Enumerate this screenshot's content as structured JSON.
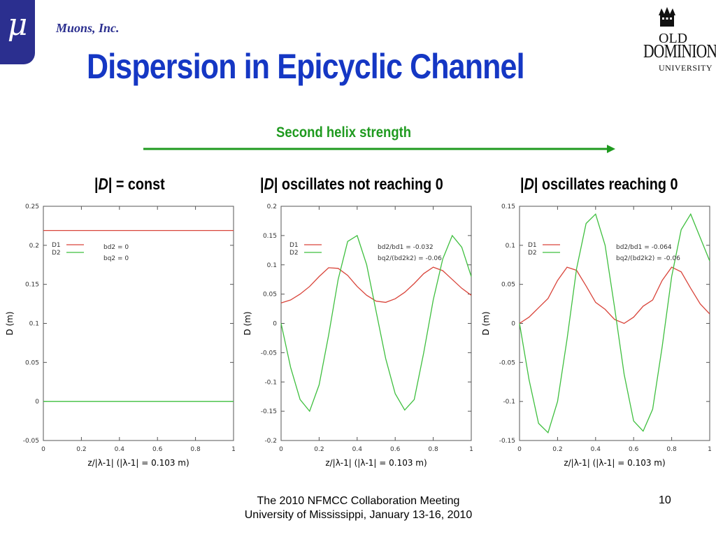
{
  "header": {
    "logo_symbol": "μ",
    "company": "Muons, Inc.",
    "title": "Dispersion in Epicyclic Channel",
    "odu_logo": {
      "line1": "OLD",
      "line2": "DOMINION",
      "line3": "UNIVERSITY"
    }
  },
  "helix": {
    "label": "Second helix strength",
    "color": "#1f9a1f"
  },
  "subtitles": [
    {
      "prefix": "|",
      "var": "D",
      "rest": "| = const"
    },
    {
      "prefix": "|",
      "var": "D",
      "rest": "| oscillates not reaching 0"
    },
    {
      "prefix": "|",
      "var": "D",
      "rest": "| oscillates reaching 0"
    }
  ],
  "colors": {
    "d1": "#d9453b",
    "d2": "#3fbf3f",
    "title": "#1537c4"
  },
  "chart_data": [
    {
      "type": "line",
      "xlabel": "z/|λ-1|  (|λ-1| = 0.103 m)",
      "ylabel": "D (m)",
      "xlim": [
        0,
        1
      ],
      "ylim": [
        -0.05,
        0.25
      ],
      "xticks": [
        "0",
        "0.2",
        "0.4",
        "0.6",
        "0.8",
        "1"
      ],
      "yticks": [
        "-0.05",
        "0",
        "0.05",
        "0.1",
        "0.15",
        "0.2",
        "0.25"
      ],
      "legend": [
        "D1",
        "D2"
      ],
      "annotations": [
        "bd2 = 0",
        "bq2 = 0"
      ],
      "series": [
        {
          "name": "D1",
          "x": [
            0,
            0.2,
            0.4,
            0.6,
            0.8,
            1.0
          ],
          "y": [
            0.219,
            0.219,
            0.219,
            0.219,
            0.219,
            0.219
          ]
        },
        {
          "name": "D2",
          "x": [
            0,
            0.2,
            0.4,
            0.6,
            0.8,
            1.0
          ],
          "y": [
            0.0,
            0.0,
            0.0,
            0.0,
            0.0,
            0.0
          ]
        }
      ]
    },
    {
      "type": "line",
      "xlabel": "z/|λ-1|  (|λ-1| = 0.103 m)",
      "ylabel": "D (m)",
      "xlim": [
        0,
        1
      ],
      "ylim": [
        -0.2,
        0.2
      ],
      "xticks": [
        "0",
        "0.2",
        "0.4",
        "0.6",
        "0.8",
        "1"
      ],
      "yticks": [
        "-0.2",
        "-0.15",
        "-0.1",
        "-0.05",
        "0",
        "0.05",
        "0.1",
        "0.15",
        "0.2"
      ],
      "legend": [
        "D1",
        "D2"
      ],
      "annotations": [
        "bd2/bd1 = -0.032",
        "bq2/(bd2k2) = -0.06"
      ],
      "series": [
        {
          "name": "D1",
          "x": [
            0,
            0.05,
            0.1,
            0.15,
            0.2,
            0.25,
            0.3,
            0.35,
            0.4,
            0.45,
            0.5,
            0.55,
            0.6,
            0.65,
            0.7,
            0.75,
            0.8,
            0.85,
            0.9,
            0.95,
            1.0
          ],
          "y": [
            0.035,
            0.04,
            0.05,
            0.063,
            0.08,
            0.095,
            0.094,
            0.082,
            0.063,
            0.048,
            0.038,
            0.036,
            0.042,
            0.053,
            0.068,
            0.085,
            0.096,
            0.09,
            0.075,
            0.06,
            0.048
          ]
        },
        {
          "name": "D2",
          "x": [
            0,
            0.05,
            0.1,
            0.15,
            0.2,
            0.25,
            0.3,
            0.35,
            0.4,
            0.45,
            0.5,
            0.55,
            0.6,
            0.65,
            0.7,
            0.75,
            0.8,
            0.85,
            0.9,
            0.95,
            1.0
          ],
          "y": [
            0.0,
            -0.075,
            -0.13,
            -0.15,
            -0.105,
            -0.02,
            0.075,
            0.14,
            0.15,
            0.1,
            0.02,
            -0.06,
            -0.12,
            -0.148,
            -0.13,
            -0.05,
            0.04,
            0.11,
            0.15,
            0.13,
            0.08
          ]
        }
      ]
    },
    {
      "type": "line",
      "xlabel": "z/|λ-1|  (|λ-1| = 0.103 m)",
      "ylabel": "D (m)",
      "xlim": [
        0,
        1
      ],
      "ylim": [
        -0.15,
        0.15
      ],
      "xticks": [
        "0",
        "0.2",
        "0.4",
        "0.6",
        "0.8",
        "1"
      ],
      "yticks": [
        "-0.15",
        "-0.1",
        "-0.05",
        "0",
        "0.05",
        "0.1",
        "0.15"
      ],
      "legend": [
        "D1",
        "D2"
      ],
      "annotations": [
        "bd2/bd1 = -0.064",
        "bq2/(bd2k2) = -0.06"
      ],
      "series": [
        {
          "name": "D1",
          "x": [
            0,
            0.05,
            0.1,
            0.15,
            0.2,
            0.25,
            0.3,
            0.35,
            0.4,
            0.45,
            0.5,
            0.55,
            0.6,
            0.65,
            0.7,
            0.75,
            0.8,
            0.85,
            0.9,
            0.95,
            1.0
          ],
          "y": [
            0.0,
            0.008,
            0.02,
            0.032,
            0.055,
            0.072,
            0.068,
            0.048,
            0.027,
            0.018,
            0.005,
            0.0,
            0.008,
            0.022,
            0.03,
            0.055,
            0.072,
            0.066,
            0.045,
            0.025,
            0.012
          ]
        },
        {
          "name": "D2",
          "x": [
            0,
            0.05,
            0.1,
            0.15,
            0.2,
            0.25,
            0.3,
            0.35,
            0.4,
            0.45,
            0.5,
            0.55,
            0.6,
            0.65,
            0.7,
            0.75,
            0.8,
            0.85,
            0.9,
            0.95,
            1.0
          ],
          "y": [
            0.0,
            -0.072,
            -0.128,
            -0.14,
            -0.1,
            -0.02,
            0.07,
            0.128,
            0.14,
            0.1,
            0.02,
            -0.065,
            -0.125,
            -0.138,
            -0.11,
            -0.03,
            0.06,
            0.12,
            0.14,
            0.11,
            0.08
          ]
        }
      ]
    }
  ],
  "footer": {
    "line1": "The 2010 NFMCC Collaboration Meeting",
    "line2": "University of Mississippi, January 13-16, 2010",
    "page": "10"
  }
}
